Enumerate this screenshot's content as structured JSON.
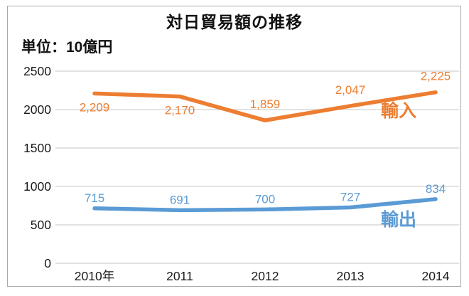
{
  "chart_data": {
    "type": "line",
    "title": "対日貿易額の推移",
    "unit_label": "単位：10億円",
    "categories": [
      "2010年",
      "2011",
      "2012",
      "2013",
      "2014"
    ],
    "ylim": [
      0,
      2500
    ],
    "y_ticks": [
      0,
      500,
      1000,
      1500,
      2000,
      2500
    ],
    "grid": true,
    "legend_position": "inline-right-of-lines",
    "series": [
      {
        "id": "imports",
        "name": "輸入",
        "color": "#ED7D31",
        "values": [
          2209,
          2170,
          1859,
          2047,
          2225
        ],
        "labels": [
          "2,209",
          "2,170",
          "1,859",
          "2,047",
          "2,225"
        ],
        "label_placement": [
          "below",
          "below",
          "above",
          "above",
          "above"
        ]
      },
      {
        "id": "exports",
        "name": "輸出",
        "color": "#5B9BD5",
        "values": [
          715,
          691,
          700,
          727,
          834
        ],
        "labels": [
          "715",
          "691",
          "700",
          "727",
          "834"
        ],
        "label_placement": [
          "above",
          "above",
          "above",
          "above",
          "above"
        ]
      }
    ],
    "style": {
      "grid_color": "#D9D9D9",
      "text_color": "#1a1a1a",
      "frame_border_color": "#A9A9A9",
      "background": "#FFFFFF"
    }
  }
}
